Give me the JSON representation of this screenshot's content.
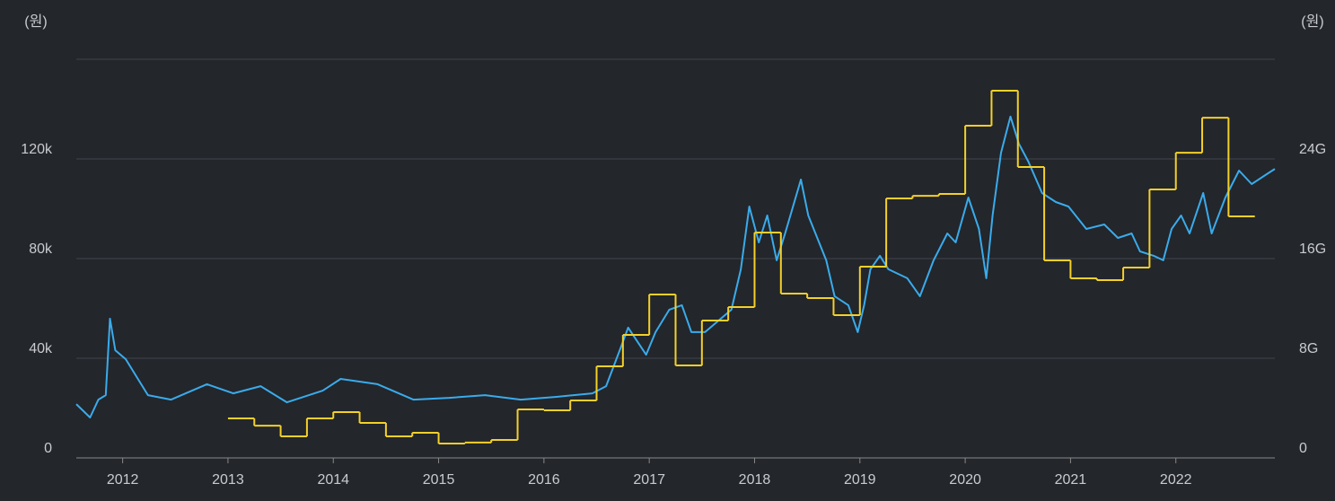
{
  "chart_data": {
    "type": "line",
    "y_label": "(원)",
    "y2_label": "(원)",
    "xlim": [
      2011.56,
      2022.94
    ],
    "xticks": [
      2012,
      2013,
      2014,
      2015,
      2016,
      2017,
      2018,
      2019,
      2020,
      2021,
      2022
    ],
    "ylim": [
      0,
      160000
    ],
    "yticks": [
      {
        "value": 0,
        "label": "0"
      },
      {
        "value": 40000,
        "label": "40k"
      },
      {
        "value": 80000,
        "label": "80k"
      },
      {
        "value": 120000,
        "label": "120k"
      }
    ],
    "y2lim": [
      0,
      32
    ],
    "y2ticks": [
      {
        "value": 0,
        "label": "0"
      },
      {
        "value": 8,
        "label": "8G"
      },
      {
        "value": 16,
        "label": "16G"
      },
      {
        "value": 24,
        "label": "24G"
      }
    ],
    "grid": true,
    "series": [
      {
        "color": "#3aabeb",
        "x": [
          2011.56,
          2011.69,
          2011.77,
          2011.84,
          2011.88,
          2011.93,
          2012.03,
          2012.24,
          2012.46,
          2012.8,
          2013.05,
          2013.31,
          2013.56,
          2013.9,
          2014.07,
          2014.42,
          2014.76,
          2015.1,
          2015.44,
          2015.78,
          2016.12,
          2016.46,
          2016.59,
          2016.72,
          2016.8,
          2016.97,
          2017.06,
          2017.19,
          2017.31,
          2017.4,
          2017.53,
          2017.78,
          2017.87,
          2017.95,
          2018.04,
          2018.12,
          2018.21,
          2018.29,
          2018.44,
          2018.51,
          2018.68,
          2018.76,
          2018.89,
          2018.98,
          2019.04,
          2019.1,
          2019.19,
          2019.27,
          2019.45,
          2019.57,
          2019.7,
          2019.83,
          2019.91,
          2020.03,
          2020.13,
          2020.2,
          2020.26,
          2020.34,
          2020.43,
          2020.51,
          2020.6,
          2020.73,
          2020.86,
          2020.98,
          2021.15,
          2021.32,
          2021.45,
          2021.58,
          2021.66,
          2021.79,
          2021.88,
          2021.96,
          2022.05,
          2022.13,
          2022.26,
          2022.34,
          2022.47,
          2022.6,
          2022.72,
          2022.85,
          2022.94
        ],
        "values": [
          21600,
          16200,
          23400,
          25200,
          55900,
          43200,
          39600,
          25200,
          23400,
          29600,
          25900,
          28800,
          22300,
          27000,
          31700,
          29600,
          23400,
          24100,
          25200,
          23400,
          24500,
          25900,
          28800,
          43200,
          52300,
          41400,
          50500,
          59500,
          61300,
          50500,
          50500,
          59500,
          75700,
          100900,
          86500,
          97300,
          79300,
          90100,
          111700,
          97300,
          79300,
          64900,
          61300,
          50500,
          61300,
          75700,
          81100,
          75700,
          72100,
          64900,
          79300,
          90100,
          86500,
          104500,
          91900,
          72100,
          97300,
          122500,
          137000,
          126100,
          118900,
          106300,
          102700,
          100900,
          91900,
          93700,
          88300,
          90100,
          82900,
          81100,
          79300,
          91900,
          97300,
          90100,
          106300,
          90100,
          104500,
          115300,
          109900,
          113500,
          116000
        ]
      },
      {
        "color": "#f3d02a",
        "axis": "y2",
        "step": "post",
        "x": [
          2013,
          2013.25,
          2013.5,
          2013.75,
          2014,
          2014.25,
          2014.5,
          2014.75,
          2015,
          2015.25,
          2015.5,
          2015.75,
          2016,
          2016.25,
          2016.5,
          2016.75,
          2017,
          2017.25,
          2017.5,
          2017.75,
          2018,
          2018.25,
          2018.5,
          2018.75,
          2019,
          2019.25,
          2019.5,
          2019.75,
          2020,
          2020.25,
          2020.5,
          2020.75,
          2021,
          2021.25,
          2021.5,
          2021.75,
          2022,
          2022.25,
          2022.5
        ],
        "values": [
          3.17,
          2.59,
          1.73,
          3.17,
          3.68,
          2.81,
          1.73,
          2.02,
          1.15,
          1.23,
          1.44,
          3.89,
          3.82,
          4.61,
          7.35,
          9.87,
          13.12,
          7.42,
          11.03,
          12.11,
          18.09,
          13.19,
          12.83,
          11.46,
          15.35,
          20.83,
          21.04,
          21.19,
          26.67,
          29.48,
          23.35,
          15.86,
          14.41,
          14.27,
          15.28,
          21.55,
          24.5,
          27.31,
          19.39
        ]
      }
    ]
  }
}
